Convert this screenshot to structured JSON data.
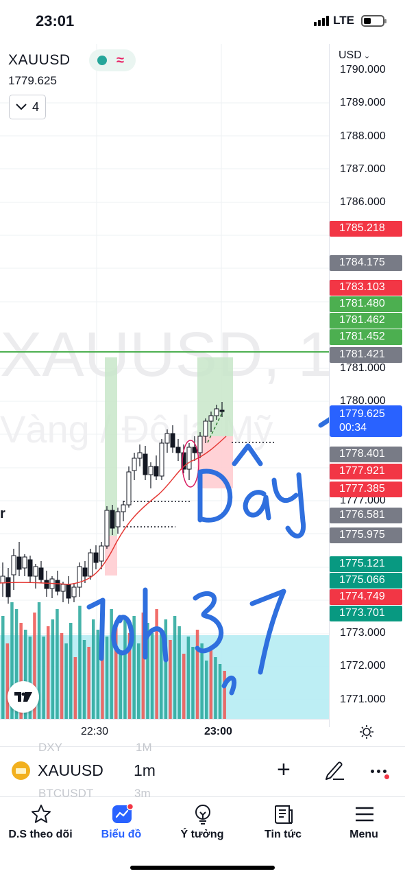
{
  "status_bar": {
    "time": "23:01",
    "network": "LTE"
  },
  "chart": {
    "symbol": "XAUUSD",
    "price": "1779.625",
    "collapse_count": "4",
    "watermark_line1": "XAUUSD, 1",
    "watermark_line2": "Vàng / Đô la Mỹ",
    "edge_letter": "r",
    "currency": "USD",
    "axis_ticks": [
      "1790.000",
      "1789.000",
      "1788.000",
      "1787.000",
      "1786.000",
      "1781.000",
      "1780.000",
      "1777.000",
      "1773.000",
      "1772.000",
      "1771.000"
    ],
    "price_tags": [
      {
        "value": "1785.218",
        "color": "#f23645"
      },
      {
        "value": "1784.175",
        "color": "#787b86"
      },
      {
        "value": "1783.103",
        "color": "#f23645"
      },
      {
        "value": "1781.480",
        "color": "#4caf50"
      },
      {
        "value": "1781.462",
        "color": "#4caf50"
      },
      {
        "value": "1781.452",
        "color": "#4caf50"
      },
      {
        "value": "1781.421",
        "color": "#787b86"
      },
      {
        "value": "1778.401",
        "color": "#787b86"
      },
      {
        "value": "1777.921",
        "color": "#f23645"
      },
      {
        "value": "1777.385",
        "color": "#f23645"
      },
      {
        "value": "1776.581",
        "color": "#787b86"
      },
      {
        "value": "1775.975",
        "color": "#787b86"
      },
      {
        "value": "1775.121",
        "color": "#089981"
      },
      {
        "value": "1775.066",
        "color": "#089981"
      },
      {
        "value": "1774.749",
        "color": "#f23645"
      },
      {
        "value": "1773.701",
        "color": "#089981"
      }
    ],
    "current_price_tag": {
      "value": "1779.625",
      "countdown": "00:34",
      "color": "#2962ff"
    },
    "time_labels": [
      "22:30",
      "23:00"
    ],
    "annotation_text": [
      "Dây",
      "10h37"
    ],
    "colors": {
      "up": "#26a69a",
      "down": "#ef5350",
      "candle_up": "#ffffff",
      "candle_down": "#131722",
      "ma": "#e53935",
      "hline": "#4caf50",
      "volume_zone": "#b2ebf2",
      "ink": "#2f6fde"
    }
  },
  "toolbar": {
    "symbol": "XAUUSD",
    "interval": "1m",
    "ghost_items": [
      {
        "symbol": "DXY",
        "interval": "1M"
      },
      {
        "symbol": "BTCUSDT",
        "interval": "3m"
      }
    ]
  },
  "bottom_nav": [
    {
      "label": "D.S theo dõi",
      "icon": "star-icon"
    },
    {
      "label": "Biểu đồ",
      "icon": "chart-icon"
    },
    {
      "label": "Ý tưởng",
      "icon": "lightbulb-icon"
    },
    {
      "label": "Tin tức",
      "icon": "news-icon"
    },
    {
      "label": "Menu",
      "icon": "hamburger-icon"
    }
  ]
}
